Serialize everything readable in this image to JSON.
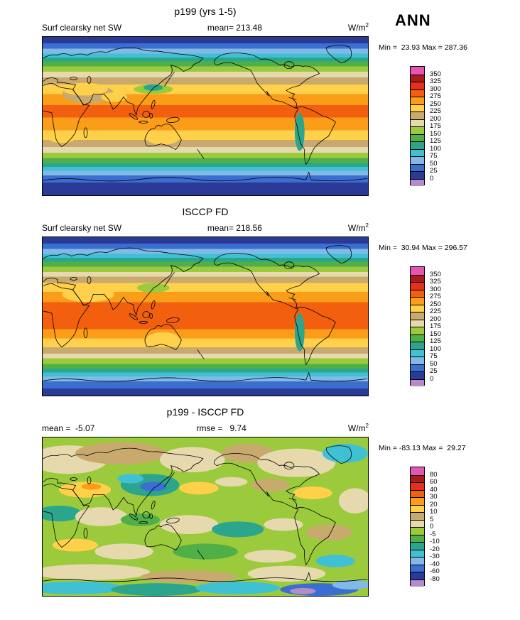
{
  "figure": {
    "season_label": "ANN"
  },
  "palette": [
    "#e754b2",
    "#a81c20",
    "#e62f1e",
    "#f2600f",
    "#fb9d18",
    "#ffd04a",
    "#c8aa6e",
    "#e7d9ae",
    "#9bcb3c",
    "#50b047",
    "#2ba58c",
    "#3fc1d3",
    "#82b9e6",
    "#3a6ed0",
    "#2b3a97",
    "#b68bc9"
  ],
  "chart_data": [
    {
      "type": "heatmap",
      "panel": "model",
      "title": "p199 (yrs 1-5)",
      "left_label": "Surf clearsky net SW",
      "center_label": "mean= 213.48",
      "units_base": "W/m",
      "units_exp": "2",
      "mean": 213.48,
      "min": 23.93,
      "max": 287.36,
      "minmax_label": "Min =  23.93 Max = 287.36",
      "colorbar_labels": [
        "350",
        "325",
        "300",
        "275",
        "250",
        "225",
        "200",
        "175",
        "150",
        "125",
        "100",
        "75",
        "50",
        "25",
        "0"
      ],
      "zonal_bands": [
        {
          "c": "#2b3a97",
          "h": 4
        },
        {
          "c": "#3a6ed0",
          "h": 3.5
        },
        {
          "c": "#82b9e6",
          "h": 3
        },
        {
          "c": "#3fc1d3",
          "h": 2.5
        },
        {
          "c": "#2ba58c",
          "h": 2.5
        },
        {
          "c": "#50b047",
          "h": 3
        },
        {
          "c": "#9bcb3c",
          "h": 3.5
        },
        {
          "c": "#e7d9ae",
          "h": 3.5
        },
        {
          "c": "#c8aa6e",
          "h": 4.5
        },
        {
          "c": "#ffd04a",
          "h": 6
        },
        {
          "c": "#fb9d18",
          "h": 7
        },
        {
          "c": "#f2600f",
          "h": 8
        },
        {
          "c": "#fb9d18",
          "h": 8
        },
        {
          "c": "#ffd04a",
          "h": 6
        },
        {
          "c": "#c8aa6e",
          "h": 4.5
        },
        {
          "c": "#e7d9ae",
          "h": 3.5
        },
        {
          "c": "#9bcb3c",
          "h": 3.5
        },
        {
          "c": "#50b047",
          "h": 3
        },
        {
          "c": "#2ba58c",
          "h": 2.5
        },
        {
          "c": "#3fc1d3",
          "h": 2.5
        },
        {
          "c": "#82b9e6",
          "h": 3
        },
        {
          "c": "#3a6ed0",
          "h": 4.5
        },
        {
          "c": "#2b3a97",
          "h": 8
        }
      ],
      "patches": [
        [
          14,
          36,
          8,
          6,
          "#c8aa6e"
        ],
        [
          13,
          33,
          7,
          4,
          "#ffd04a"
        ],
        [
          22,
          38,
          4,
          3,
          "#ffd04a"
        ],
        [
          34,
          33,
          6,
          3,
          "#9bcb3c"
        ],
        [
          34,
          32,
          3,
          2,
          "#2ba58c"
        ],
        [
          37,
          64,
          5,
          4,
          "#ffd04a"
        ],
        [
          79,
          60,
          1.5,
          12,
          "#2ba58c"
        ],
        [
          6,
          64,
          4,
          3,
          "#ffd04a"
        ]
      ]
    },
    {
      "type": "heatmap",
      "panel": "reference",
      "title": "ISCCP FD",
      "left_label": "Surf clearsky net SW",
      "center_label": "mean= 218.56",
      "units_base": "W/m",
      "units_exp": "2",
      "mean": 218.56,
      "min": 30.94,
      "max": 296.57,
      "minmax_label": "Min =  30.94 Max = 296.57",
      "colorbar_labels": [
        "350",
        "325",
        "300",
        "275",
        "250",
        "225",
        "200",
        "175",
        "150",
        "125",
        "100",
        "75",
        "50",
        "25",
        "0"
      ],
      "zonal_bands": [
        {
          "c": "#2b3a97",
          "h": 4
        },
        {
          "c": "#3a6ed0",
          "h": 3.5
        },
        {
          "c": "#82b9e6",
          "h": 3
        },
        {
          "c": "#3fc1d3",
          "h": 2.5
        },
        {
          "c": "#2ba58c",
          "h": 2.5
        },
        {
          "c": "#50b047",
          "h": 3
        },
        {
          "c": "#9bcb3c",
          "h": 3.5
        },
        {
          "c": "#e7d9ae",
          "h": 3
        },
        {
          "c": "#c8aa6e",
          "h": 4
        },
        {
          "c": "#ffd04a",
          "h": 5.5
        },
        {
          "c": "#fb9d18",
          "h": 6.5
        },
        {
          "c": "#f2600f",
          "h": 17
        },
        {
          "c": "#fb9d18",
          "h": 6
        },
        {
          "c": "#ffd04a",
          "h": 5.5
        },
        {
          "c": "#c8aa6e",
          "h": 4
        },
        {
          "c": "#e7d9ae",
          "h": 3
        },
        {
          "c": "#9bcb3c",
          "h": 3.5
        },
        {
          "c": "#50b047",
          "h": 3
        },
        {
          "c": "#2ba58c",
          "h": 2.5
        },
        {
          "c": "#3fc1d3",
          "h": 2.5
        },
        {
          "c": "#82b9e6",
          "h": 3
        },
        {
          "c": "#3a6ed0",
          "h": 4.5
        },
        {
          "c": "#2b3a97",
          "h": 4.5
        }
      ],
      "patches": [
        [
          14,
          36,
          8,
          5,
          "#ffd04a"
        ],
        [
          34,
          32,
          5,
          3,
          "#9bcb3c"
        ],
        [
          37,
          64,
          5,
          4,
          "#ffd04a"
        ],
        [
          79,
          60,
          1.5,
          12,
          "#2ba58c"
        ]
      ]
    },
    {
      "type": "heatmap",
      "panel": "difference",
      "title": "p199 - ISCCP FD",
      "left_label": "mean =  -5.07",
      "center_label": "rmse =   9.74",
      "units_base": "W/m",
      "units_exp": "2",
      "mean": -5.07,
      "rmse": 9.74,
      "min": -83.13,
      "max": 29.27,
      "minmax_label": "Min = -83.13 Max =  29.27",
      "colorbar_labels": [
        "80",
        "60",
        "40",
        "30",
        "20",
        "10",
        "5",
        "0",
        "-5",
        "-10",
        "-20",
        "-30",
        "-40",
        "-60",
        "-80"
      ],
      "base_color": "#9bcb3c",
      "patches": [
        [
          8,
          14,
          12,
          9,
          "#e7d9ae"
        ],
        [
          24,
          10,
          14,
          7,
          "#c8aa6e"
        ],
        [
          46,
          14,
          10,
          8,
          "#e7d9ae"
        ],
        [
          63,
          10,
          8,
          6,
          "#c8aa6e"
        ],
        [
          78,
          16,
          12,
          9,
          "#e7d9ae"
        ],
        [
          93,
          10,
          7,
          6,
          "#3fc1d3"
        ],
        [
          96,
          40,
          5,
          8,
          "#e7d9ae"
        ],
        [
          13,
          33,
          8,
          5,
          "#ffd04a"
        ],
        [
          15,
          31,
          3,
          2,
          "#fb9d18"
        ],
        [
          33,
          30,
          9,
          7,
          "#2ba58c"
        ],
        [
          34,
          31,
          4,
          3,
          "#3a6ed0"
        ],
        [
          27,
          26,
          4,
          3,
          "#3fc1d3"
        ],
        [
          48,
          32,
          6,
          4,
          "#ffd04a"
        ],
        [
          58,
          28,
          5,
          3,
          "#e7d9ae"
        ],
        [
          70,
          30,
          6,
          4,
          "#c8aa6e"
        ],
        [
          83,
          35,
          6,
          4,
          "#ffd04a"
        ],
        [
          5,
          48,
          7,
          5,
          "#2ba58c"
        ],
        [
          18,
          50,
          8,
          6,
          "#e7d9ae"
        ],
        [
          30,
          52,
          6,
          4,
          "#50b047"
        ],
        [
          45,
          55,
          9,
          6,
          "#e7d9ae"
        ],
        [
          60,
          58,
          8,
          5,
          "#2ba58c"
        ],
        [
          74,
          55,
          6,
          4,
          "#e7d9ae"
        ],
        [
          88,
          60,
          7,
          5,
          "#c8aa6e"
        ],
        [
          10,
          68,
          7,
          4,
          "#ffd04a"
        ],
        [
          25,
          72,
          9,
          5,
          "#e7d9ae"
        ],
        [
          50,
          72,
          10,
          5,
          "#50b047"
        ],
        [
          70,
          75,
          8,
          4,
          "#e7d9ae"
        ],
        [
          90,
          78,
          6,
          4,
          "#3fc1d3"
        ],
        [
          15,
          85,
          18,
          5,
          "#e7d9ae"
        ],
        [
          45,
          88,
          15,
          4,
          "#c8aa6e"
        ],
        [
          75,
          86,
          12,
          5,
          "#e7d9ae"
        ],
        [
          10,
          95,
          15,
          4,
          "#3fc1d3"
        ],
        [
          35,
          96,
          14,
          4,
          "#2ba58c"
        ],
        [
          60,
          95,
          13,
          4,
          "#3fc1d3"
        ],
        [
          85,
          96,
          12,
          4,
          "#3a6ed0"
        ],
        [
          95,
          93,
          6,
          3,
          "#82b9e6"
        ],
        [
          80,
          97,
          4,
          2,
          "#b68bc9"
        ]
      ]
    }
  ]
}
